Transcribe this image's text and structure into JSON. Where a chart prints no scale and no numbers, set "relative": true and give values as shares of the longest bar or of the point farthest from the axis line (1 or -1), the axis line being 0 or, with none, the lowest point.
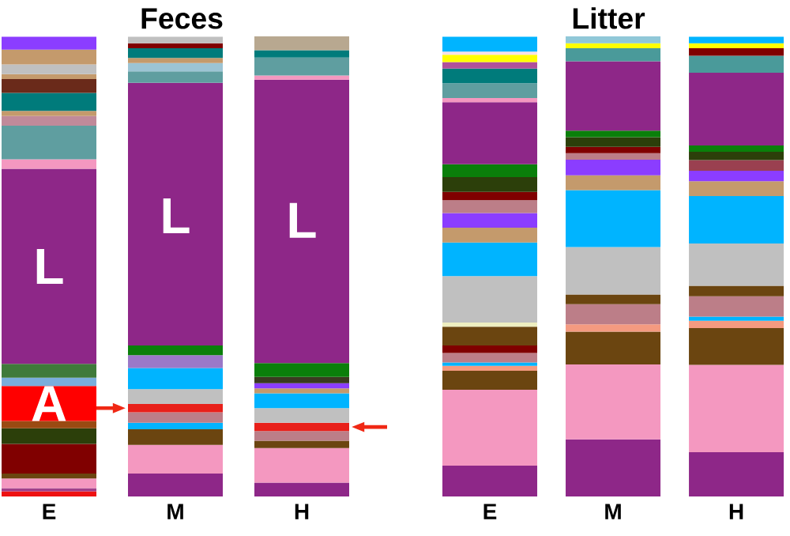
{
  "chart_data": [
    {
      "type": "bar",
      "title": "Feces",
      "categories": [
        "E",
        "M",
        "H"
      ],
      "stacked": true,
      "relative": true,
      "series": [
        {
          "values": [
            0.011,
            0.05,
            0.03
          ],
          "colors": [
            "#ee1111",
            "#8e2788",
            "#8e2788"
          ]
        },
        {
          "values": [
            0.007,
            0.062,
            0.075
          ],
          "colors": [
            "#a0408a",
            "#f498c0",
            "#f498c0"
          ]
        },
        {
          "values": [
            0.021,
            0.034,
            0.016
          ],
          "colors": [
            "#f498c0",
            "#6b4510",
            "#6b4510"
          ]
        },
        {
          "values": [
            0.011,
            0.014,
            0.021
          ],
          "colors": [
            "#6b4510",
            "#00b4ff",
            "#bc7e88"
          ]
        },
        {
          "values": [
            0.064,
            0.023,
            0.018
          ],
          "colors": [
            "#800000",
            "#bc7e88",
            "#e8201a"
          ]
        },
        {
          "values": [
            0.034,
            0.018,
            0.032
          ],
          "colors": [
            "#2c3f0a",
            "#e8201a",
            "#c0c0c0"
          ]
        },
        {
          "values": [
            0.016,
            0.032,
            0.032
          ],
          "colors": [
            "#9a4a12",
            "#c0c0c0",
            "#00b4ff"
          ]
        },
        {
          "values": [
            0.076,
            0.046,
            0.011
          ],
          "colors": [
            "#ff0000",
            "#00b4ff",
            "#c49a6c"
          ]
        },
        {
          "values": [
            0.018,
            0.028,
            0.011
          ],
          "colors": [
            "#7aaedc",
            "#9a78c8",
            "#8b3dff"
          ]
        },
        {
          "values": [
            0.03,
            0.021,
            0.014
          ],
          "colors": [
            "#3f7a3a",
            "#0a7f0a",
            "#3a3a20"
          ]
        },
        {
          "values": [
            0.424,
            0.571,
            0.03
          ],
          "colors": [
            "#8e2788",
            "#8e2788",
            "#0a7f0a"
          ]
        },
        {
          "values": [
            0.021,
            0.025,
            0.616
          ],
          "colors": [
            "#f498c0",
            "#5f9ea0",
            "#8e2788"
          ]
        },
        {
          "values": [
            0.073,
            0.018,
            0.009
          ],
          "colors": [
            "#5f9ea0",
            "#9cc4d4",
            "#f498c0"
          ]
        },
        {
          "values": [
            0.021,
            0.011,
            0.039
          ],
          "colors": [
            "#c08a9a",
            "#c49a6c",
            "#5f9ea0"
          ]
        },
        {
          "values": [
            0.011,
            0.021,
            0.016
          ],
          "colors": [
            "#c49a6c",
            "#007b7b",
            "#007b7b"
          ]
        },
        {
          "values": [
            0.039,
            0.011,
            0.03
          ],
          "colors": [
            "#007b7b",
            "#800000",
            "#b8a890"
          ]
        },
        {
          "values": [
            0.03,
            0.014,
            null
          ],
          "colors": [
            "#6a2a1a",
            "#c0c0c0",
            null
          ]
        },
        {
          "values": [
            0.011,
            null,
            null
          ],
          "colors": [
            "#c49a6c",
            null,
            null
          ]
        },
        {
          "values": [
            0.021,
            null,
            null
          ],
          "colors": [
            "#c0c0c0",
            null,
            null
          ]
        },
        {
          "values": [
            0.032,
            null,
            null
          ],
          "colors": [
            "#c49a6c",
            null,
            null
          ]
        },
        {
          "values": [
            0.028,
            null,
            null
          ],
          "colors": [
            "#8b3dff",
            null,
            null
          ]
        }
      ],
      "annotations": [
        "L",
        "A",
        "L",
        "L"
      ]
    },
    {
      "type": "bar",
      "title": "Litter",
      "categories": [
        "E",
        "M",
        "H"
      ],
      "stacked": true,
      "relative": true,
      "series": [
        {
          "values": [
            0.067,
            0.124,
            0.096
          ],
          "colors": [
            "#8e2788",
            "#8e2788",
            "#8e2788"
          ]
        },
        {
          "values": [
            0.165,
            0.163,
            0.19
          ],
          "colors": [
            "#f498c0",
            "#f498c0",
            "#f498c0"
          ]
        },
        {
          "values": [
            0.041,
            0.071,
            0.08
          ],
          "colors": [
            "#6b4510",
            "#6b4510",
            "#6b4510"
          ]
        },
        {
          "values": [
            0.011,
            0.016,
            0.016
          ],
          "colors": [
            "#f49a80",
            "#f49a80",
            "#f49a80"
          ]
        },
        {
          "values": [
            0.007,
            0.044,
            0.009
          ],
          "colors": [
            "#00b4ff",
            "#bc7e88",
            "#00b4ff"
          ]
        },
        {
          "values": [
            0.021,
            0.021,
            0.044
          ],
          "colors": [
            "#bc7e88",
            "#6b4510",
            "#bc7e88"
          ]
        },
        {
          "values": [
            0.016,
            0.103,
            0.023
          ],
          "colors": [
            "#800000",
            "#c0c0c0",
            "#6b4510"
          ]
        },
        {
          "values": [
            0.041,
            0.124,
            0.092
          ],
          "colors": [
            "#6b4510",
            "#00b4ff",
            "#c0c0c0"
          ]
        },
        {
          "values": [
            0.009,
            0.032,
            0.103
          ],
          "colors": [
            "#eeeec0",
            "#c49a6c",
            "#00b4ff"
          ]
        },
        {
          "values": [
            0.101,
            0.034,
            0.032
          ],
          "colors": [
            "#c0c0c0",
            "#8b3dff",
            "#c49a6c"
          ]
        },
        {
          "values": [
            0.073,
            0.014,
            0.023
          ],
          "colors": [
            "#00b4ff",
            "#bc7e88",
            "#8b3dff"
          ]
        },
        {
          "values": [
            0.032,
            0.014,
            0.023
          ],
          "colors": [
            "#c49a6c",
            "#800000",
            "#9a4050"
          ]
        },
        {
          "values": [
            0.032,
            0.021,
            0.018
          ],
          "colors": [
            "#8b3dff",
            "#2c3f0a",
            "#2c3f0a"
          ]
        },
        {
          "values": [
            0.028,
            0.014,
            0.014
          ],
          "colors": [
            "#bc7e88",
            "#0a7f0a",
            "#0a7f0a"
          ]
        },
        {
          "values": [
            0.018,
            0.151,
            0.158
          ],
          "colors": [
            "#800000",
            "#8e2788",
            "#8e2788"
          ]
        },
        {
          "values": [
            0.032,
            0.028,
            0.037
          ],
          "colors": [
            "#2c3f0a",
            "#4a9a9a",
            "#4a9a9a"
          ]
        },
        {
          "values": [
            0.028,
            0.011,
            0.016
          ],
          "colors": [
            "#0a7f0a",
            "#ffff00",
            "#800000"
          ]
        },
        {
          "values": [
            0.135,
            0.015,
            0.011
          ],
          "colors": [
            "#8e2788",
            "#90c8d8",
            "#ffff00"
          ]
        },
        {
          "values": [
            0.009,
            null,
            0.014
          ],
          "colors": [
            "#f498c0",
            null,
            "#00b4ff"
          ]
        },
        {
          "values": [
            0.032,
            null,
            null
          ],
          "colors": [
            "#5f9ea0",
            null,
            null
          ]
        },
        {
          "values": [
            0.032,
            null,
            null
          ],
          "colors": [
            "#007b7b",
            null,
            null
          ]
        },
        {
          "values": [
            0.014,
            null,
            null
          ],
          "colors": [
            "#b0509a",
            null,
            null
          ]
        },
        {
          "values": [
            0.016,
            null,
            null
          ],
          "colors": [
            "#ffff00",
            null,
            null
          ]
        },
        {
          "values": [
            0.007,
            null,
            null
          ],
          "colors": [
            "#f8e0e8",
            null,
            null
          ]
        },
        {
          "values": [
            0.032,
            null,
            null
          ],
          "colors": [
            "#00b4ff",
            null,
            null
          ]
        }
      ]
    }
  ]
}
